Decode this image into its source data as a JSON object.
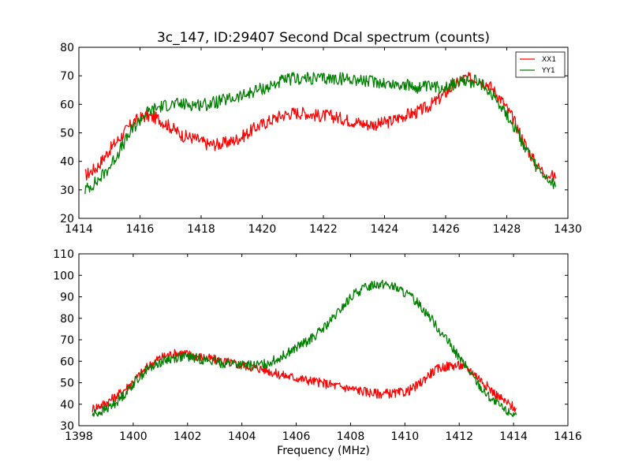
{
  "chart_data": [
    {
      "type": "line",
      "title": "3c_147, ID:29407 Second Dcal spectrum (counts)",
      "xlabel": "",
      "ylabel": "",
      "xlim": [
        1414,
        1430
      ],
      "ylim": [
        20,
        80
      ],
      "x_ticks": [
        "1414",
        "1416",
        "1418",
        "1420",
        "1422",
        "1424",
        "1426",
        "1428",
        "1430"
      ],
      "y_ticks": [
        "20",
        "30",
        "40",
        "50",
        "60",
        "70",
        "80"
      ],
      "legend": {
        "placement": "top-right",
        "entries": [
          "XX1",
          "YY1"
        ]
      },
      "series": [
        {
          "name": "XX1",
          "color": "#ff0000",
          "x": [
            1414.2,
            1414.6,
            1415.0,
            1415.4,
            1415.8,
            1416.2,
            1416.6,
            1417.0,
            1417.4,
            1417.8,
            1418.2,
            1418.6,
            1419.0,
            1419.4,
            1419.8,
            1420.2,
            1420.6,
            1421.0,
            1421.4,
            1421.8,
            1422.2,
            1422.6,
            1423.0,
            1423.4,
            1423.8,
            1424.2,
            1424.6,
            1425.0,
            1425.4,
            1425.8,
            1426.2,
            1426.6,
            1427.0,
            1427.4,
            1427.8,
            1428.2,
            1428.6,
            1429.0,
            1429.6
          ],
          "y": [
            35,
            38,
            44,
            49,
            54,
            56,
            55,
            52,
            49,
            48,
            46,
            46,
            47,
            49,
            52,
            54,
            56,
            57,
            57,
            56,
            56,
            55,
            54,
            53,
            53,
            54,
            56,
            57,
            59,
            62,
            66,
            69,
            69,
            67,
            62,
            55,
            46,
            38,
            34
          ]
        },
        {
          "name": "YY1",
          "color": "#008000",
          "x": [
            1414.2,
            1414.6,
            1415.0,
            1415.4,
            1415.8,
            1416.2,
            1416.6,
            1417.0,
            1417.4,
            1417.8,
            1418.2,
            1418.6,
            1419.0,
            1419.4,
            1419.8,
            1420.2,
            1420.6,
            1421.0,
            1421.4,
            1421.8,
            1422.2,
            1422.6,
            1423.0,
            1423.4,
            1423.8,
            1424.2,
            1424.6,
            1425.0,
            1425.4,
            1425.8,
            1426.2,
            1426.6,
            1427.0,
            1427.4,
            1427.8,
            1428.2,
            1428.6,
            1429.0,
            1429.6
          ],
          "y": [
            30,
            33,
            38,
            45,
            52,
            57,
            59,
            60,
            60,
            60,
            60,
            61,
            62,
            63,
            65,
            66,
            68,
            69,
            69,
            69,
            69,
            69,
            69,
            68,
            68,
            67,
            67,
            66,
            66,
            66,
            67,
            68,
            68,
            65,
            60,
            53,
            45,
            37,
            31
          ]
        }
      ]
    },
    {
      "type": "line",
      "title": "",
      "xlabel": "Frequency (MHz)",
      "ylabel": "",
      "xlim": [
        1398,
        1416
      ],
      "ylim": [
        30,
        110
      ],
      "x_ticks": [
        "1398",
        "1400",
        "1402",
        "1404",
        "1406",
        "1408",
        "1410",
        "1412",
        "1414",
        "1416"
      ],
      "y_ticks": [
        "30",
        "40",
        "50",
        "60",
        "70",
        "80",
        "90",
        "100",
        "110"
      ],
      "series": [
        {
          "name": "XX1",
          "color": "#ff0000",
          "x": [
            1398.5,
            1398.9,
            1399.3,
            1399.7,
            1400.1,
            1400.5,
            1400.9,
            1401.3,
            1401.7,
            1402.1,
            1402.5,
            1402.9,
            1403.3,
            1403.7,
            1404.1,
            1404.5,
            1404.9,
            1405.3,
            1405.7,
            1406.1,
            1406.5,
            1406.9,
            1407.3,
            1407.7,
            1408.1,
            1408.5,
            1408.9,
            1409.3,
            1409.7,
            1410.1,
            1410.5,
            1410.9,
            1411.3,
            1411.7,
            1412.1,
            1412.5,
            1412.9,
            1413.3,
            1413.7,
            1414.1
          ],
          "y": [
            38,
            40,
            43,
            47,
            52,
            57,
            61,
            63,
            64,
            63,
            62,
            61,
            60,
            59,
            58,
            57,
            56,
            54,
            53,
            52,
            51,
            50,
            49,
            48,
            47,
            46,
            45,
            45,
            45,
            46,
            49,
            54,
            57,
            58,
            58,
            55,
            50,
            45,
            41,
            38
          ]
        },
        {
          "name": "YY1",
          "color": "#008000",
          "x": [
            1398.5,
            1398.9,
            1399.3,
            1399.7,
            1400.1,
            1400.5,
            1400.9,
            1401.3,
            1401.7,
            1402.1,
            1402.5,
            1402.9,
            1403.3,
            1403.7,
            1404.1,
            1404.5,
            1404.9,
            1405.3,
            1405.7,
            1406.1,
            1406.5,
            1406.9,
            1407.3,
            1407.7,
            1408.1,
            1408.5,
            1408.9,
            1409.3,
            1409.7,
            1410.1,
            1410.5,
            1410.9,
            1411.3,
            1411.7,
            1412.1,
            1412.5,
            1412.9,
            1413.3,
            1413.7,
            1414.1
          ],
          "y": [
            35,
            37,
            40,
            45,
            51,
            56,
            59,
            61,
            62,
            62,
            61,
            60,
            59,
            59,
            58,
            58,
            59,
            61,
            64,
            67,
            70,
            74,
            79,
            85,
            91,
            94,
            96,
            96,
            94,
            91,
            87,
            81,
            74,
            67,
            60,
            53,
            46,
            41,
            37,
            35
          ]
        }
      ]
    }
  ]
}
